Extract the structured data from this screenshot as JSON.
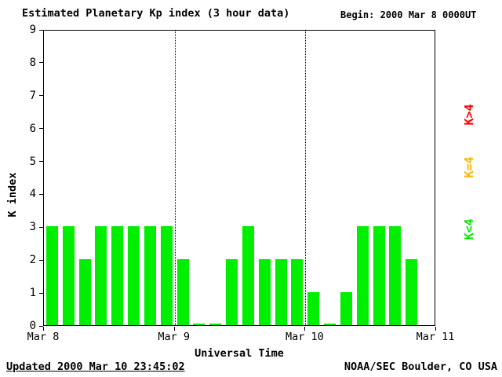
{
  "title": "Estimated Planetary Kp index (3 hour data)",
  "begin_label": "Begin:  2000 Mar 8 0000UT",
  "footer": {
    "updated": "Updated 2000 Mar 10 23:45:02",
    "source": "NOAA/SEC Boulder, CO USA"
  },
  "legend": {
    "items": [
      {
        "label": "K>4",
        "color": "#ff0000"
      },
      {
        "label": "K=4",
        "color": "#ffb300"
      },
      {
        "label": "K<4",
        "color": "#00e800"
      }
    ]
  },
  "chart_data": {
    "type": "bar",
    "title": "Estimated Planetary Kp index (3 hour data)",
    "xlabel": "Universal Time",
    "ylabel": "K index",
    "ylim": [
      0,
      9
    ],
    "yticks": [
      0,
      1,
      2,
      3,
      4,
      5,
      6,
      7,
      8,
      9
    ],
    "x_boundary_labels": [
      "Mar 8",
      "Mar 9",
      "Mar 10",
      "Mar 11"
    ],
    "hours_per_bar": 3,
    "bars_per_day": 8,
    "grid": "dotted vertical lines at day boundaries",
    "legend_position": "right, rotated",
    "series": [
      {
        "day": "Mar 8",
        "values": [
          3,
          3,
          2,
          3,
          3,
          3,
          3,
          3
        ]
      },
      {
        "day": "Mar 9",
        "values": [
          2,
          0,
          0,
          2,
          3,
          2,
          2,
          2
        ]
      },
      {
        "day": "Mar 10",
        "values": [
          1,
          0,
          1,
          3,
          3,
          3,
          2
        ]
      }
    ],
    "color_rules": {
      "below_4": "#00ee00",
      "equal_4": "#ffcc00",
      "above_4": "#ff0000"
    }
  }
}
